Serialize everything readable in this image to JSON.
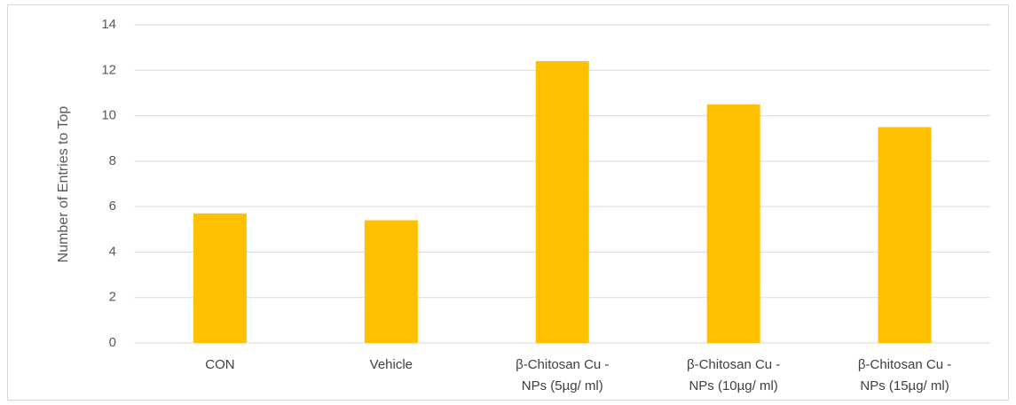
{
  "chart_data": {
    "type": "bar",
    "y_label": "Number of Entries to Top",
    "categories": [
      "CON",
      "Vehicle",
      "β-Chitosan Cu -\nNPs (5µg/ ml)",
      "β-Chitosan Cu -\nNPs (10µg/ ml)",
      "β-Chitosan Cu -\nNPs (15µg/ ml)"
    ],
    "values": [
      5.7,
      5.4,
      12.4,
      10.5,
      9.5
    ],
    "color": "#ffc000",
    "ylim": [
      0,
      14
    ],
    "yticks": [
      0,
      2,
      4,
      6,
      8,
      10,
      12,
      14
    ],
    "grid": true
  }
}
